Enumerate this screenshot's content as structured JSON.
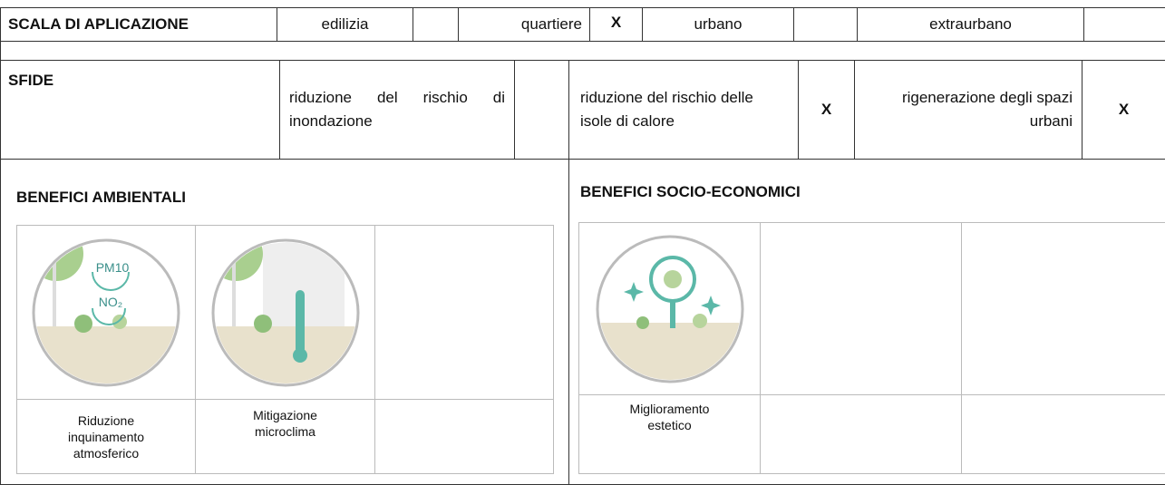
{
  "scala": {
    "label": "SCALA DI APLICAZIONE",
    "options": [
      {
        "label": "edilizia"
      },
      {
        "label": "quartiere",
        "mark": "X"
      },
      {
        "label": "urbano"
      },
      {
        "label": "extraurbano"
      }
    ]
  },
  "sfide": {
    "label": "SFIDE",
    "options": [
      {
        "label": "riduzione del rischio di inondazione"
      },
      {
        "label": "riduzione del rischio delle isole di calore",
        "mark": "X"
      },
      {
        "label": "rigenerazione degli spazi urbani",
        "mark": "X"
      }
    ]
  },
  "benefici_ambientali": {
    "title": "BENEFICI AMBIENTALI",
    "items": [
      {
        "label": "Riduzione inquinamento atmosferico",
        "icon_texts": [
          "PM10",
          "NO₂"
        ]
      },
      {
        "label": "Mitigazione microclima"
      }
    ]
  },
  "benefici_socio_economici": {
    "title": "BENEFICI SOCIO-ECONOMICI",
    "items": [
      {
        "label": "Miglioramento estetico"
      }
    ]
  }
}
